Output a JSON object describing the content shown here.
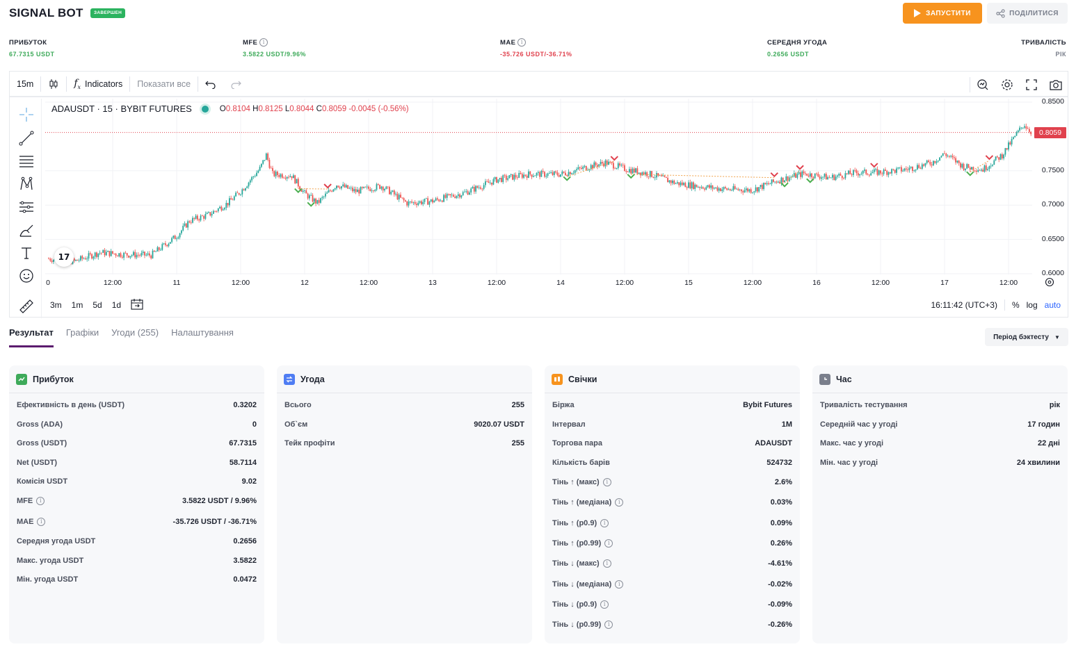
{
  "header": {
    "title": "SIGNAL BOT",
    "status": "ЗАВЕРШЕН",
    "run_label": "ЗАПУСТИТИ",
    "share_label": "ПОДІЛИТИСЯ"
  },
  "stats": [
    {
      "label": "ПРИБУТОК",
      "value": "67.7315 USDT",
      "color": "#3eaa5a",
      "info": false
    },
    {
      "label": "MFE",
      "value": "3.5822 USDT/9.96%",
      "color": "#3eaa5a",
      "info": true
    },
    {
      "label": "MAE",
      "value": "-35.726 USDT/-36.71%",
      "color": "#e0414d",
      "info": true
    },
    {
      "label": "СЕРЕДНЯ УГОДА",
      "value": "0.2656 USDT",
      "color": "#3eaa5a",
      "info": false
    },
    {
      "label": "ТРИВАЛІСТЬ",
      "value": "РІК",
      "color": "#7a7f8c",
      "info": false
    }
  ],
  "toolbar": {
    "interval": "15m",
    "indicators_label": "Indicators",
    "show_all_label": "Показати все"
  },
  "legend": {
    "symbol": "ADAUSDT · 15 · BYBIT FUTURES",
    "o_label": "O",
    "o": "0.8104",
    "h_label": "H",
    "h": "0.8125",
    "l_label": "L",
    "l": "0.8044",
    "c_label": "C",
    "c": "0.8059",
    "change": "-0.0045 (-0.56%)"
  },
  "chart_data": {
    "type": "candlestick",
    "symbol": "ADAUSDT",
    "last_price": 0.8059,
    "y_ticks": [
      "0.8500",
      "0.7500",
      "0.7000",
      "0.6500",
      "0.6000"
    ],
    "ylim": [
      0.6,
      0.85
    ],
    "x_ticks": [
      "0",
      "12:00",
      "11",
      "12:00",
      "12",
      "12:00",
      "13",
      "12:00",
      "14",
      "12:00",
      "15",
      "12:00",
      "16",
      "12:00",
      "17",
      "12:00"
    ],
    "x_days": [
      10.5,
      11,
      12,
      13,
      14,
      15,
      16,
      17
    ],
    "price_path": [
      [
        10.0,
        0.622
      ],
      [
        10.2,
        0.618
      ],
      [
        10.4,
        0.631
      ],
      [
        10.6,
        0.628
      ],
      [
        10.8,
        0.627
      ],
      [
        11.0,
        0.655
      ],
      [
        11.1,
        0.677
      ],
      [
        11.25,
        0.686
      ],
      [
        11.4,
        0.703
      ],
      [
        11.5,
        0.72
      ],
      [
        11.65,
        0.753
      ],
      [
        11.7,
        0.773
      ],
      [
        11.75,
        0.745
      ],
      [
        11.9,
        0.743
      ],
      [
        12.0,
        0.717
      ],
      [
        12.1,
        0.703
      ],
      [
        12.25,
        0.73
      ],
      [
        12.4,
        0.72
      ],
      [
        12.6,
        0.728
      ],
      [
        12.8,
        0.703
      ],
      [
        13.0,
        0.706
      ],
      [
        13.25,
        0.718
      ],
      [
        13.5,
        0.737
      ],
      [
        13.75,
        0.745
      ],
      [
        14.0,
        0.745
      ],
      [
        14.2,
        0.755
      ],
      [
        14.35,
        0.762
      ],
      [
        14.5,
        0.753
      ],
      [
        14.7,
        0.745
      ],
      [
        14.9,
        0.732
      ],
      [
        15.1,
        0.727
      ],
      [
        15.3,
        0.723
      ],
      [
        15.5,
        0.722
      ],
      [
        15.7,
        0.736
      ],
      [
        15.9,
        0.746
      ],
      [
        16.1,
        0.74
      ],
      [
        16.3,
        0.747
      ],
      [
        16.5,
        0.748
      ],
      [
        16.7,
        0.752
      ],
      [
        16.9,
        0.762
      ],
      [
        17.0,
        0.775
      ],
      [
        17.15,
        0.756
      ],
      [
        17.3,
        0.752
      ],
      [
        17.45,
        0.773
      ],
      [
        17.55,
        0.8
      ],
      [
        17.62,
        0.818
      ],
      [
        17.68,
        0.806
      ]
    ],
    "buy_signals": [
      11.95,
      12.05,
      14.05,
      14.55,
      15.75,
      15.95,
      17.2
    ],
    "sell_signals": [
      12.18,
      14.42,
      15.67,
      15.87,
      16.45,
      17.35
    ]
  },
  "time_display": "16:11:42 (UTC+3)",
  "range_buttons": [
    "3m",
    "1m",
    "5d",
    "1d"
  ],
  "scale_options": {
    "percent": "%",
    "log": "log",
    "auto": "auto"
  },
  "tabs": [
    "Результат",
    "Графіки",
    "Угоди (255)",
    "Налаштування"
  ],
  "period_label": "Період бэктесту",
  "cards": [
    {
      "title": "Прибуток",
      "icon": "chart-icon",
      "color": "#3eaa5a",
      "rows": [
        {
          "k": "Ефективність в день (USDT)",
          "v": "0.3202",
          "info": false
        },
        {
          "k": "Gross (ADA)",
          "v": "0",
          "info": false
        },
        {
          "k": "Gross (USDT)",
          "v": "67.7315",
          "info": false
        },
        {
          "k": "Net (USDT)",
          "v": "58.7114",
          "info": false
        },
        {
          "k": "Комісія USDT",
          "v": "9.02",
          "info": false
        },
        {
          "k": "MFE",
          "v": "3.5822 USDT / 9.96%",
          "info": true
        },
        {
          "k": "MAE",
          "v": "-35.726 USDT / -36.71%",
          "info": true
        },
        {
          "k": "Середня угода USDT",
          "v": "0.2656",
          "info": false
        },
        {
          "k": "Макс. угода USDT",
          "v": "3.5822",
          "info": false
        },
        {
          "k": "Мін. угода USDT",
          "v": "0.0472",
          "info": false
        }
      ]
    },
    {
      "title": "Угода",
      "icon": "swap-icon",
      "color": "#4f7df3",
      "rows": [
        {
          "k": "Всього",
          "v": "255",
          "info": false
        },
        {
          "k": "Об`єм",
          "v": "9020.07 USDT",
          "info": false
        },
        {
          "k": "Тейк профіти",
          "v": "255",
          "info": false
        }
      ]
    },
    {
      "title": "Свічки",
      "icon": "candles-icon",
      "color": "#f7931e",
      "rows": [
        {
          "k": "Біржа",
          "v": "Bybit Futures",
          "info": false
        },
        {
          "k": "Інтервал",
          "v": "1M",
          "info": false
        },
        {
          "k": "Торгова пара",
          "v": "ADAUSDT",
          "info": false
        },
        {
          "k": "Кількість барів",
          "v": "524732",
          "info": false
        },
        {
          "k": "Тінь ↑ (макс)",
          "v": "2.6%",
          "info": true
        },
        {
          "k": "Тінь ↑ (медіана)",
          "v": "0.03%",
          "info": true
        },
        {
          "k": "Тінь ↑ (p0.9)",
          "v": "0.09%",
          "info": true
        },
        {
          "k": "Тінь ↑ (p0.99)",
          "v": "0.26%",
          "info": true
        },
        {
          "k": "Тінь ↓ (макс)",
          "v": "-4.61%",
          "info": true
        },
        {
          "k": "Тінь ↓ (медіана)",
          "v": "-0.02%",
          "info": true
        },
        {
          "k": "Тінь ↓ (p0.9)",
          "v": "-0.09%",
          "info": true
        },
        {
          "k": "Тінь ↓ (p0.99)",
          "v": "-0.26%",
          "info": true
        }
      ]
    },
    {
      "title": "Час",
      "icon": "clock-icon",
      "color": "#7a7f8c",
      "rows": [
        {
          "k": "Тривалість тестування",
          "v": "рік",
          "info": false
        },
        {
          "k": "Середній час у угоді",
          "v": "17 годин",
          "info": false
        },
        {
          "k": "Макс. час у угоді",
          "v": "22 дні",
          "info": false
        },
        {
          "k": "Мін. час у угоді",
          "v": "24 хвилини",
          "info": false
        }
      ]
    }
  ]
}
